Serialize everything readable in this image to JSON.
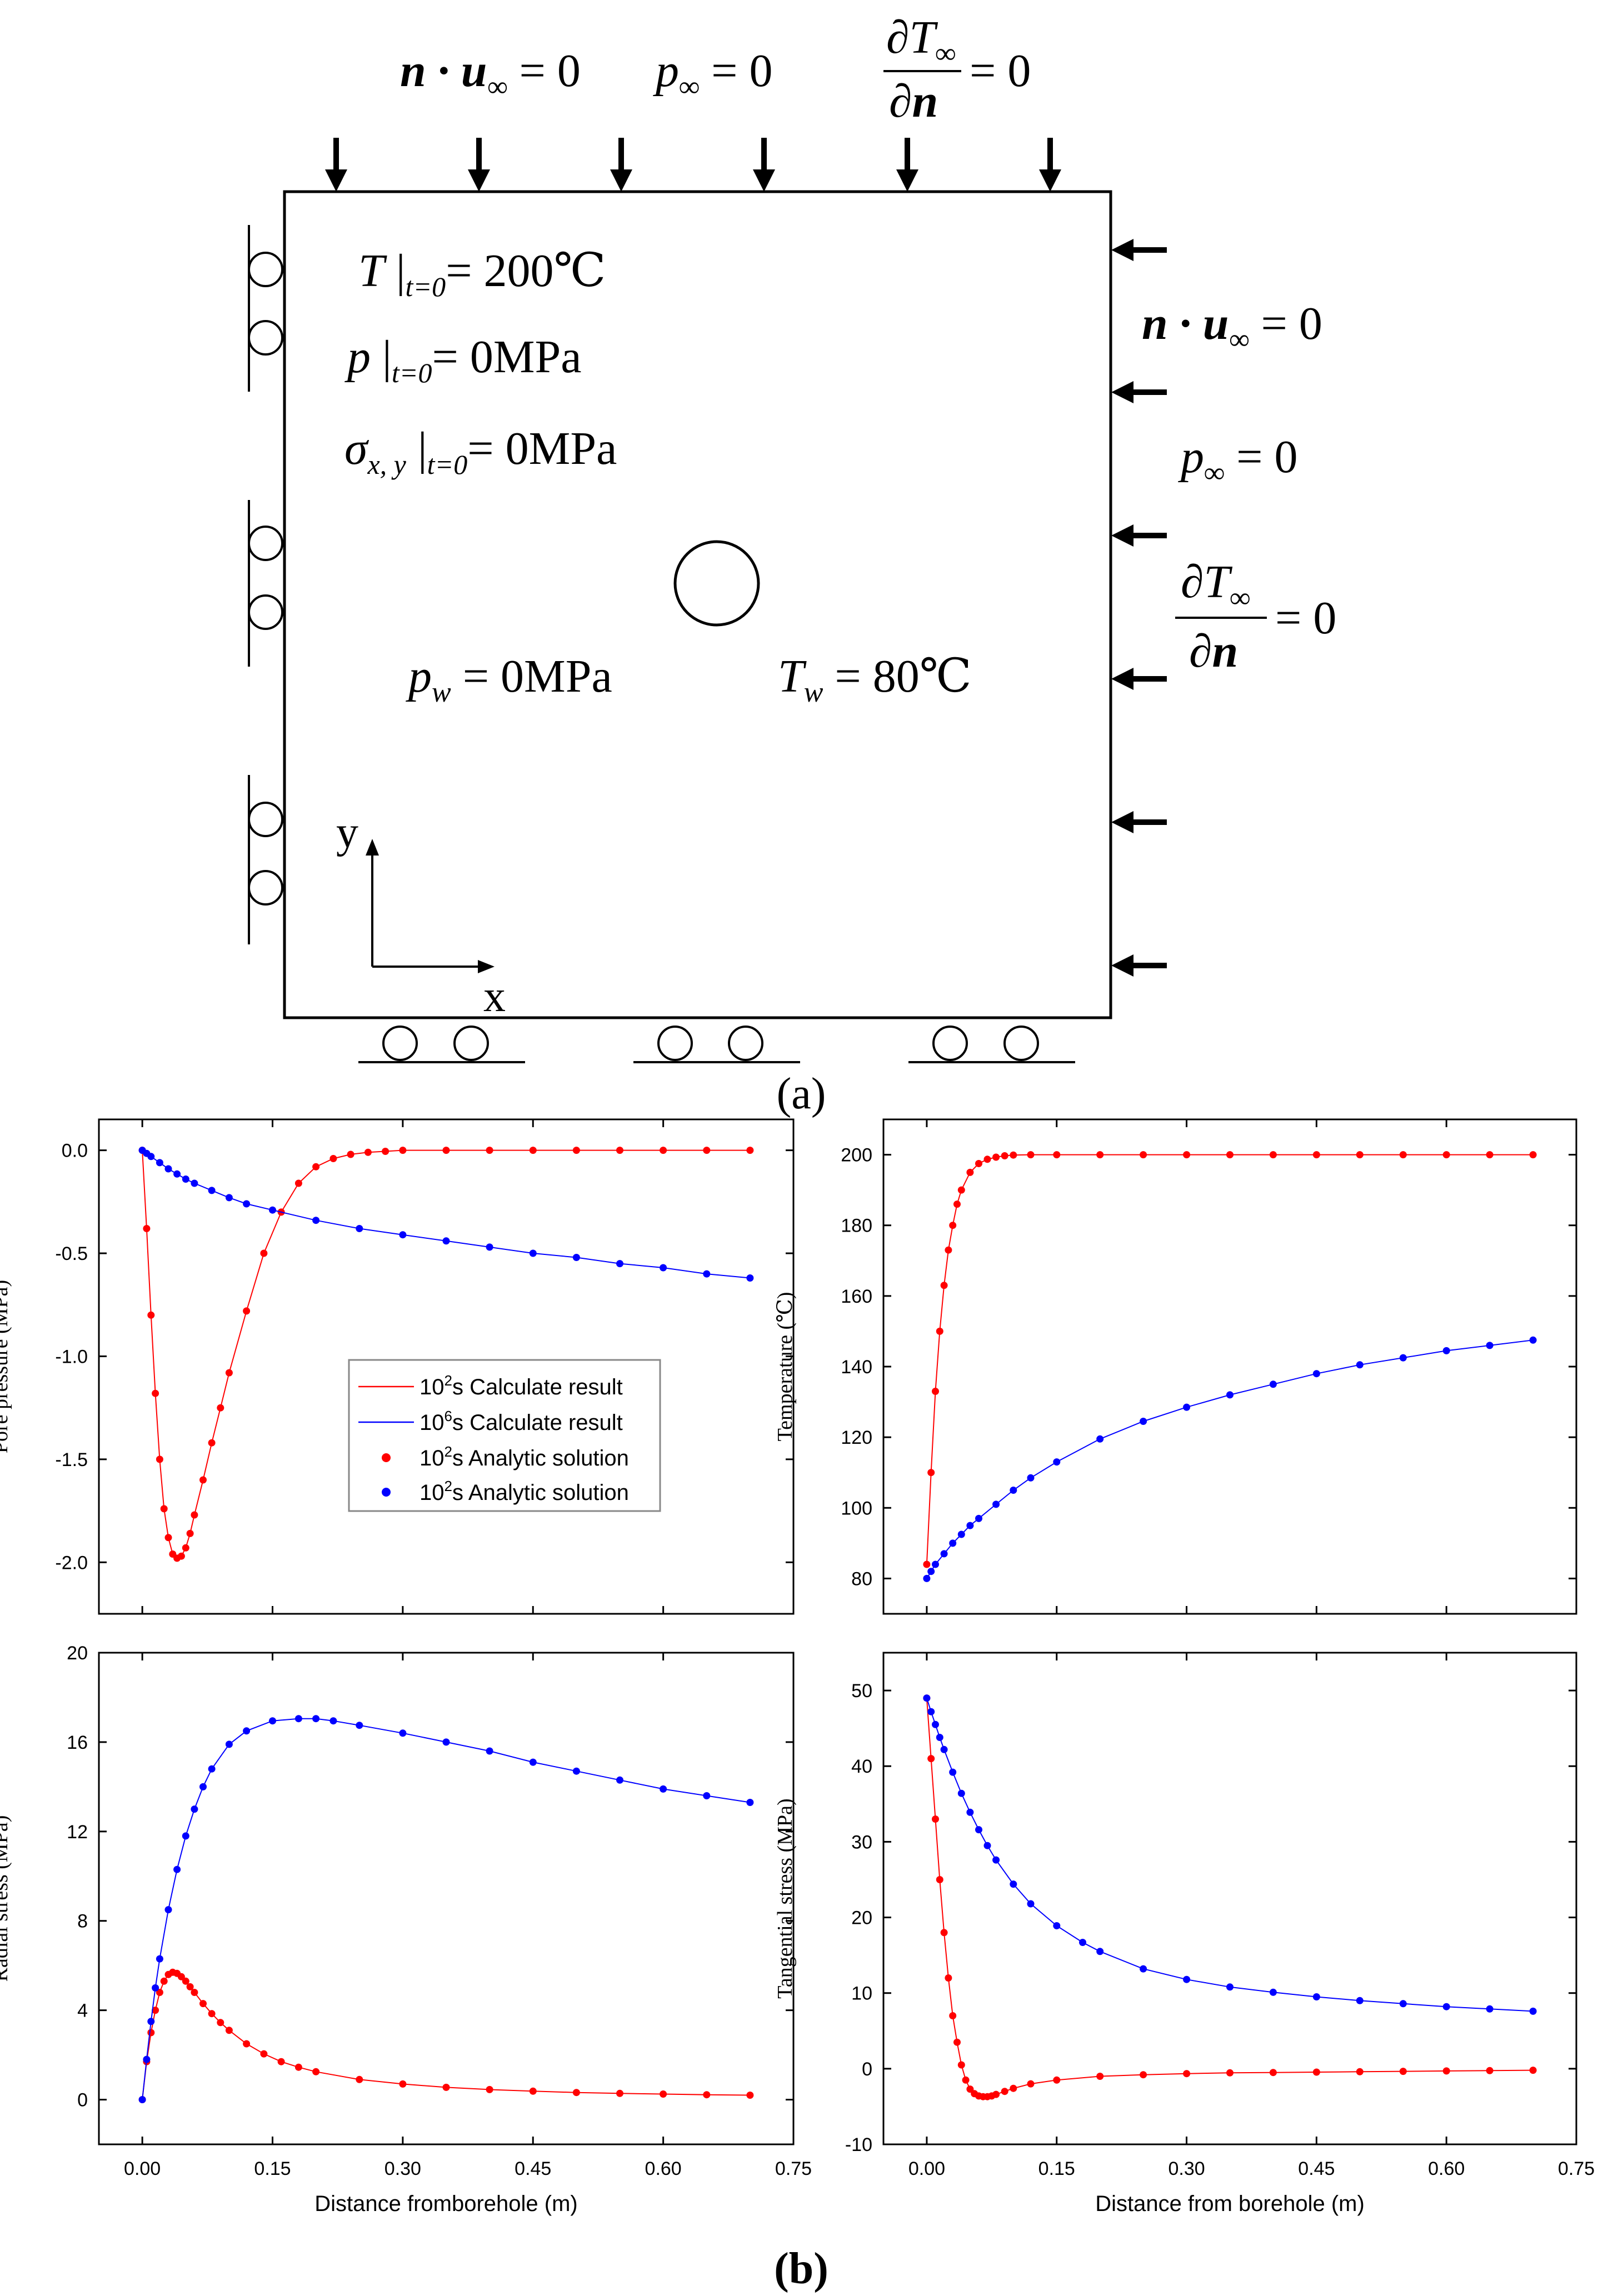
{
  "schematic": {
    "top_bc": {
      "normal_disp": "n · u",
      "normal_disp_sub": "∞",
      "normal_disp_rhs": " = 0",
      "pressure": "p",
      "pressure_sub": "∞",
      "pressure_rhs": " = 0",
      "dT_num": "∂T",
      "dT_sub": "∞",
      "dT_den": "∂n",
      "dT_rhs": "= 0"
    },
    "right_bc": {
      "normal_disp": "n · u",
      "normal_disp_sub": "∞",
      "normal_disp_rhs": " = 0",
      "pressure": "p",
      "pressure_sub": "∞",
      "pressure_rhs": " = 0",
      "dT_num": "∂T",
      "dT_sub": "∞",
      "dT_den": "∂n",
      "dT_rhs": "= 0"
    },
    "initial": [
      {
        "sym": "T",
        "sub": "t=0",
        "rhs": "= 200℃"
      },
      {
        "sym": "p",
        "sub": "t=0",
        "rhs": "= 0MPa"
      },
      {
        "sym": "σ",
        "symsub": "x, y",
        "sub": "t=0",
        "rhs": "= 0MPa"
      }
    ],
    "well": {
      "p_sym": "p",
      "p_sub": "w",
      "p_rhs": " = 0MPa",
      "t_sym": "T",
      "t_sub": "w",
      "t_rhs": " = 80℃"
    },
    "axes": {
      "x": "x",
      "y": "y"
    },
    "caption": "(a)"
  },
  "caption_b": "(b)",
  "legend": {
    "entries": [
      {
        "kind": "line",
        "color": "#ff0000",
        "pre": "10",
        "sup": "2",
        "post": "s Calculate result"
      },
      {
        "kind": "line",
        "color": "#0000ff",
        "pre": "10",
        "sup": "6",
        "post": "s Calculate result"
      },
      {
        "kind": "dot",
        "color": "#ff0000",
        "pre": "10",
        "sup": "2",
        "post": "s Analytic solution"
      },
      {
        "kind": "dot",
        "color": "#0000ff",
        "pre": "10",
        "sup": "2",
        "post": "s Analytic solution"
      }
    ]
  },
  "colors": {
    "red": "#ff0000",
    "blue": "#0000ff",
    "axis": "#000000"
  },
  "chart_data": [
    {
      "type": "line",
      "id": "pore",
      "xlabel": "",
      "ylabel": "Pore pressure (MPa)",
      "xlim": [
        -0.05,
        0.75
      ],
      "ylim": [
        -2.25,
        0.15
      ],
      "xticks": [
        0.0,
        0.15,
        0.3,
        0.45,
        0.6,
        0.75
      ],
      "yticks": [
        0.0,
        -0.5,
        -1.0,
        -1.5,
        -2.0
      ],
      "ytick_labels": [
        "0.0",
        "-0.5",
        "-1.0",
        "-1.5",
        "-2.0"
      ],
      "xtick_labels": [],
      "series": [
        {
          "name": "10^2 s",
          "color": "#ff0000",
          "x": [
            0,
            0.005,
            0.01,
            0.015,
            0.02,
            0.025,
            0.03,
            0.035,
            0.04,
            0.045,
            0.05,
            0.055,
            0.06,
            0.07,
            0.08,
            0.09,
            0.1,
            0.12,
            0.14,
            0.16,
            0.18,
            0.2,
            0.22,
            0.24,
            0.26,
            0.28,
            0.3,
            0.35,
            0.4,
            0.45,
            0.5,
            0.55,
            0.6,
            0.65,
            0.7
          ],
          "y": [
            0,
            -0.38,
            -0.8,
            -1.18,
            -1.5,
            -1.74,
            -1.88,
            -1.96,
            -1.98,
            -1.97,
            -1.93,
            -1.86,
            -1.77,
            -1.6,
            -1.42,
            -1.25,
            -1.08,
            -0.78,
            -0.5,
            -0.3,
            -0.16,
            -0.08,
            -0.04,
            -0.02,
            -0.01,
            -0.005,
            0,
            0,
            0,
            0,
            0,
            0,
            0,
            0,
            0
          ]
        },
        {
          "name": "10^6 s",
          "color": "#0000ff",
          "x": [
            0,
            0.005,
            0.01,
            0.02,
            0.03,
            0.04,
            0.05,
            0.06,
            0.08,
            0.1,
            0.12,
            0.15,
            0.2,
            0.25,
            0.3,
            0.35,
            0.4,
            0.45,
            0.5,
            0.55,
            0.6,
            0.65,
            0.7
          ],
          "y": [
            0,
            -0.015,
            -0.03,
            -0.06,
            -0.09,
            -0.115,
            -0.14,
            -0.16,
            -0.195,
            -0.23,
            -0.26,
            -0.29,
            -0.34,
            -0.38,
            -0.41,
            -0.44,
            -0.47,
            -0.5,
            -0.52,
            -0.55,
            -0.57,
            -0.6,
            -0.62
          ]
        }
      ]
    },
    {
      "type": "line",
      "id": "temp",
      "xlabel": "",
      "ylabel": "Temperature (℃)",
      "xlim": [
        -0.05,
        0.75
      ],
      "ylim": [
        70,
        210
      ],
      "xticks": [
        0.0,
        0.15,
        0.3,
        0.45,
        0.6,
        0.75
      ],
      "yticks": [
        80,
        100,
        120,
        140,
        160,
        180,
        200
      ],
      "ytick_labels": [
        "80",
        "100",
        "120",
        "140",
        "160",
        "180",
        "200"
      ],
      "xtick_labels": [],
      "series": [
        {
          "name": "10^2 s",
          "color": "#ff0000",
          "x": [
            0,
            0.005,
            0.01,
            0.015,
            0.02,
            0.025,
            0.03,
            0.035,
            0.04,
            0.05,
            0.06,
            0.07,
            0.08,
            0.09,
            0.1,
            0.12,
            0.15,
            0.2,
            0.25,
            0.3,
            0.35,
            0.4,
            0.45,
            0.5,
            0.55,
            0.6,
            0.65,
            0.7
          ],
          "y": [
            84,
            110,
            133,
            150,
            163,
            173,
            180,
            186,
            190,
            195,
            197.5,
            198.7,
            199.3,
            199.7,
            199.9,
            200,
            200,
            200,
            200,
            200,
            200,
            200,
            200,
            200,
            200,
            200,
            200,
            200
          ]
        },
        {
          "name": "10^6 s",
          "color": "#0000ff",
          "x": [
            0,
            0.005,
            0.01,
            0.02,
            0.03,
            0.04,
            0.05,
            0.06,
            0.08,
            0.1,
            0.12,
            0.15,
            0.2,
            0.25,
            0.3,
            0.35,
            0.4,
            0.45,
            0.5,
            0.55,
            0.6,
            0.65,
            0.7
          ],
          "y": [
            80,
            82,
            84,
            87,
            90,
            92.5,
            95,
            97,
            101,
            105,
            108.5,
            113,
            119.5,
            124.5,
            128.5,
            132,
            135,
            138,
            140.5,
            142.5,
            144.5,
            146,
            147.5
          ]
        }
      ]
    },
    {
      "type": "line",
      "id": "radial",
      "xlabel": "Distance fromborehole (m)",
      "ylabel": "Radial stress (MPa)",
      "xlim": [
        -0.05,
        0.75
      ],
      "ylim": [
        -2,
        20
      ],
      "xticks": [
        0.0,
        0.15,
        0.3,
        0.45,
        0.6,
        0.75
      ],
      "yticks": [
        0,
        4,
        8,
        12,
        16,
        20
      ],
      "ytick_labels": [
        "0",
        "4",
        "8",
        "12",
        "16",
        "20"
      ],
      "xtick_labels": [
        "0.00",
        "0.15",
        "0.30",
        "0.45",
        "0.60",
        "0.75"
      ],
      "series": [
        {
          "name": "10^2 s",
          "color": "#ff0000",
          "x": [
            0,
            0.005,
            0.01,
            0.015,
            0.02,
            0.025,
            0.03,
            0.035,
            0.04,
            0.045,
            0.05,
            0.055,
            0.06,
            0.07,
            0.08,
            0.09,
            0.1,
            0.12,
            0.14,
            0.16,
            0.18,
            0.2,
            0.25,
            0.3,
            0.35,
            0.4,
            0.45,
            0.5,
            0.55,
            0.6,
            0.65,
            0.7
          ],
          "y": [
            0,
            1.7,
            3.0,
            4.0,
            4.8,
            5.3,
            5.6,
            5.7,
            5.65,
            5.5,
            5.3,
            5.05,
            4.8,
            4.3,
            3.85,
            3.45,
            3.1,
            2.5,
            2.05,
            1.7,
            1.45,
            1.25,
            0.9,
            0.7,
            0.55,
            0.45,
            0.38,
            0.32,
            0.28,
            0.25,
            0.22,
            0.2
          ]
        },
        {
          "name": "10^6 s",
          "color": "#0000ff",
          "x": [
            0,
            0.005,
            0.01,
            0.015,
            0.02,
            0.03,
            0.04,
            0.05,
            0.06,
            0.07,
            0.08,
            0.1,
            0.12,
            0.15,
            0.18,
            0.2,
            0.22,
            0.25,
            0.3,
            0.35,
            0.4,
            0.45,
            0.5,
            0.55,
            0.6,
            0.65,
            0.7
          ],
          "y": [
            0,
            1.8,
            3.5,
            5.0,
            6.3,
            8.5,
            10.3,
            11.8,
            13.0,
            14.0,
            14.8,
            15.9,
            16.5,
            16.95,
            17.05,
            17.05,
            16.95,
            16.75,
            16.4,
            16.0,
            15.6,
            15.1,
            14.7,
            14.3,
            13.9,
            13.6,
            13.3
          ]
        }
      ]
    },
    {
      "type": "line",
      "id": "tangential",
      "xlabel": "Distance from borehole (m)",
      "ylabel": "Tangential stress (MPa)",
      "xlim": [
        -0.05,
        0.75
      ],
      "ylim": [
        -10,
        55
      ],
      "xticks": [
        0.0,
        0.15,
        0.3,
        0.45,
        0.6,
        0.75
      ],
      "yticks": [
        -10,
        0,
        10,
        20,
        30,
        40,
        50
      ],
      "ytick_labels": [
        "-10",
        "0",
        "10",
        "20",
        "30",
        "40",
        "50"
      ],
      "xtick_labels": [
        "0.00",
        "0.15",
        "0.30",
        "0.45",
        "0.60",
        "0.75"
      ],
      "series": [
        {
          "name": "10^2 s",
          "color": "#ff0000",
          "x": [
            0,
            0.005,
            0.01,
            0.015,
            0.02,
            0.025,
            0.03,
            0.035,
            0.04,
            0.045,
            0.05,
            0.055,
            0.06,
            0.065,
            0.07,
            0.075,
            0.08,
            0.09,
            0.1,
            0.12,
            0.15,
            0.2,
            0.25,
            0.3,
            0.35,
            0.4,
            0.45,
            0.5,
            0.55,
            0.6,
            0.65,
            0.7
          ],
          "y": [
            49,
            41,
            33,
            25,
            18,
            12,
            7,
            3.5,
            0.5,
            -1.5,
            -2.7,
            -3.3,
            -3.6,
            -3.7,
            -3.7,
            -3.6,
            -3.4,
            -3.0,
            -2.6,
            -2.0,
            -1.5,
            -1.0,
            -0.8,
            -0.65,
            -0.55,
            -0.5,
            -0.45,
            -0.4,
            -0.35,
            -0.3,
            -0.25,
            -0.2
          ]
        },
        {
          "name": "10^6 s",
          "color": "#0000ff",
          "x": [
            0,
            0.005,
            0.01,
            0.015,
            0.02,
            0.03,
            0.04,
            0.05,
            0.06,
            0.07,
            0.08,
            0.1,
            0.12,
            0.15,
            0.18,
            0.2,
            0.25,
            0.3,
            0.35,
            0.4,
            0.45,
            0.5,
            0.55,
            0.6,
            0.65,
            0.7
          ],
          "y": [
            49,
            47.2,
            45.5,
            43.8,
            42.2,
            39.2,
            36.4,
            33.9,
            31.6,
            29.5,
            27.6,
            24.4,
            21.8,
            18.9,
            16.7,
            15.5,
            13.2,
            11.8,
            10.8,
            10.1,
            9.5,
            9.0,
            8.6,
            8.2,
            7.9,
            7.6
          ]
        }
      ]
    }
  ]
}
